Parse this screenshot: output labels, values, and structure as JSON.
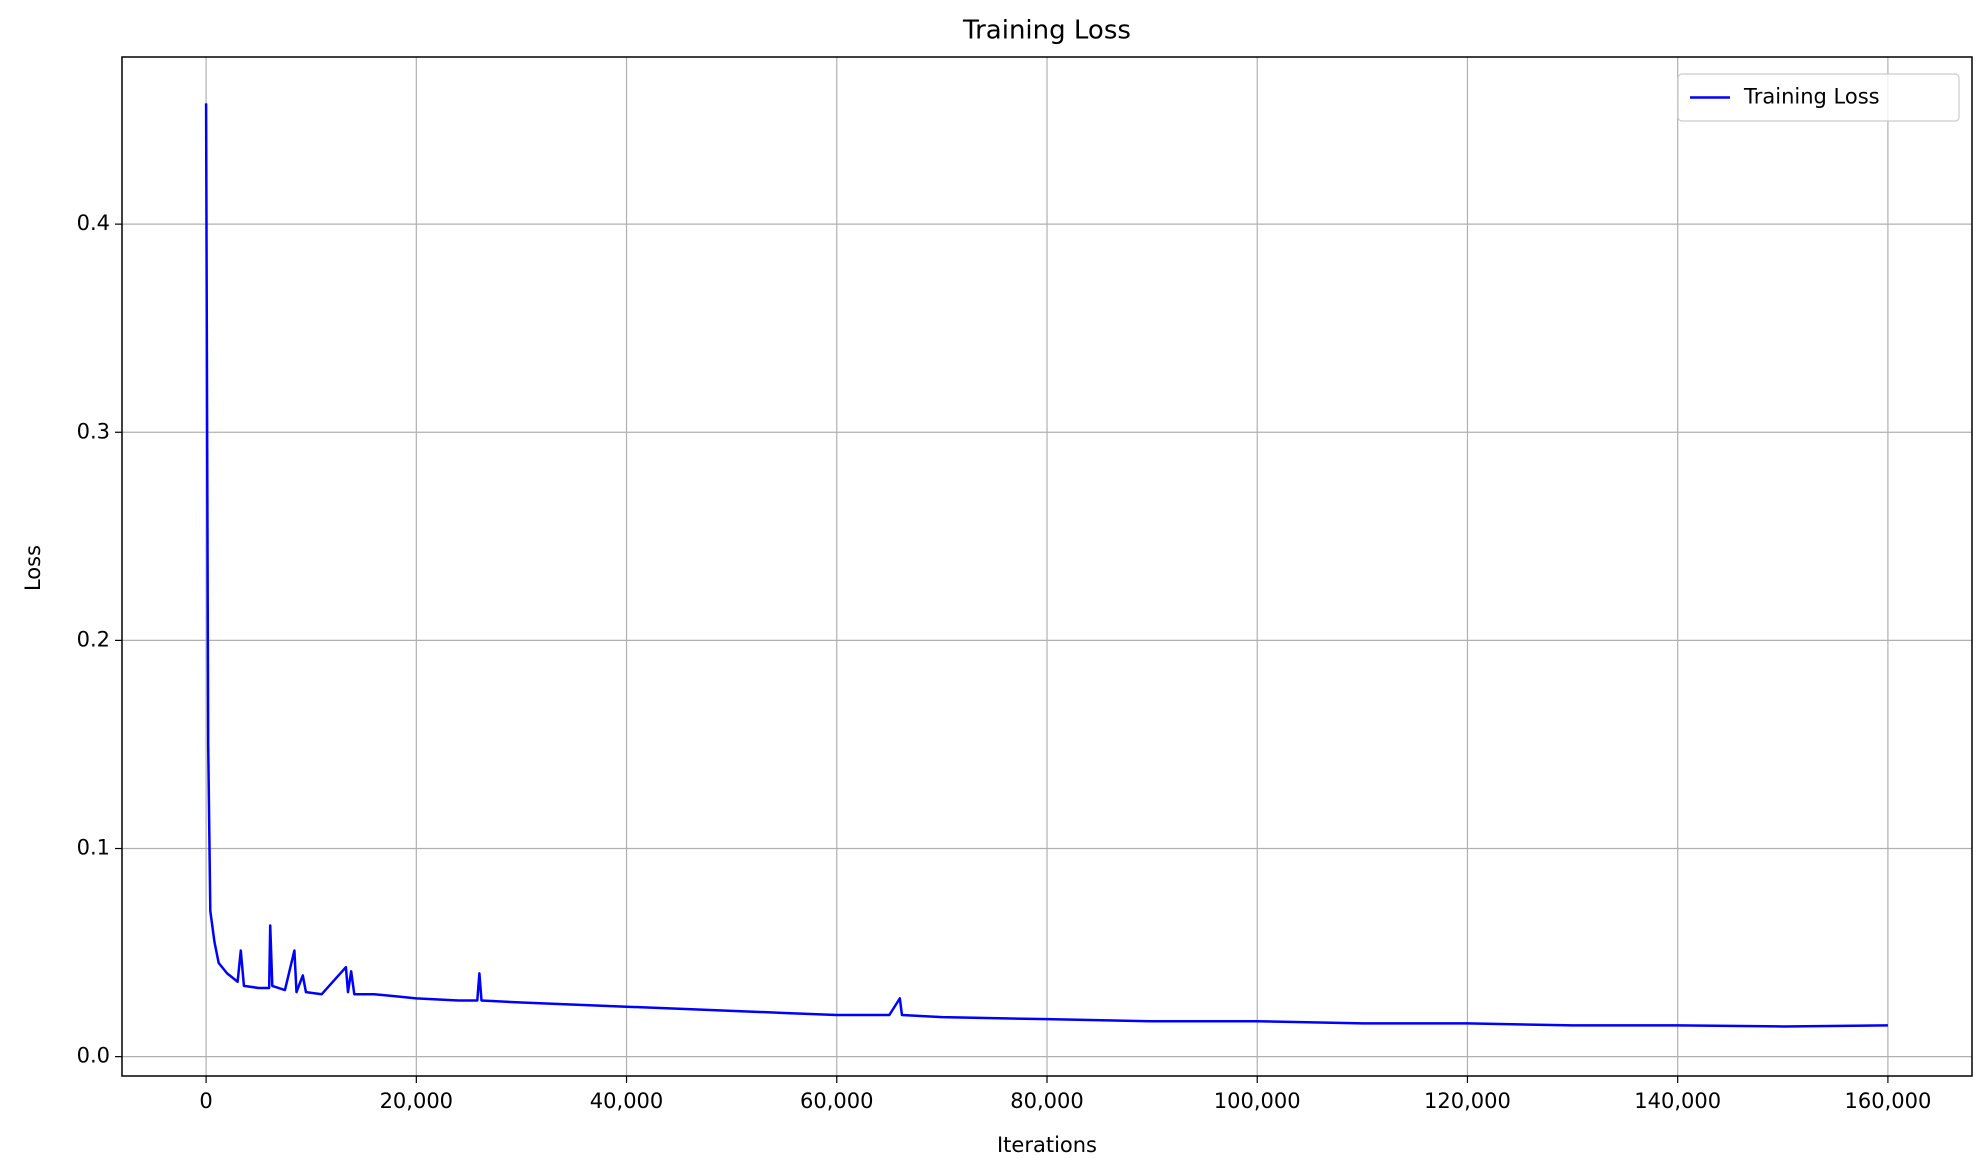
{
  "chart_data": {
    "type": "line",
    "title": "Training Loss",
    "x_label": "Iterations",
    "y_label": "Loss",
    "x": [
      0,
      100,
      200,
      400,
      800,
      1200,
      2000,
      3000,
      3300,
      3600,
      5000,
      6000,
      6100,
      6300,
      7500,
      8400,
      8600,
      9200,
      9500,
      11000,
      13300,
      13500,
      13800,
      14100,
      16000,
      18000,
      20000,
      24000,
      25800,
      26000,
      26200,
      30000,
      35000,
      40000,
      45000,
      50000,
      55000,
      60000,
      65000,
      66000,
      66200,
      70000,
      80000,
      90000,
      100000,
      110000,
      120000,
      130000,
      140000,
      150000,
      160000
    ],
    "series": [
      {
        "name": "Training Loss",
        "color": "#0000ff",
        "values": [
          0.458,
          0.3,
          0.15,
          0.07,
          0.055,
          0.045,
          0.04,
          0.036,
          0.051,
          0.034,
          0.033,
          0.033,
          0.063,
          0.034,
          0.032,
          0.051,
          0.031,
          0.039,
          0.031,
          0.03,
          0.043,
          0.031,
          0.041,
          0.03,
          0.03,
          0.029,
          0.028,
          0.027,
          0.027,
          0.04,
          0.027,
          0.026,
          0.025,
          0.024,
          0.023,
          0.022,
          0.021,
          0.02,
          0.02,
          0.028,
          0.02,
          0.019,
          0.018,
          0.017,
          0.017,
          0.016,
          0.016,
          0.015,
          0.015,
          0.0145,
          0.015
        ]
      }
    ],
    "xlim": [
      -8000,
      168000
    ],
    "xticks": [
      {
        "value": 0,
        "label": "0"
      },
      {
        "value": 20000,
        "label": "20,000"
      },
      {
        "value": 40000,
        "label": "40,000"
      },
      {
        "value": 60000,
        "label": "60,000"
      },
      {
        "value": 80000,
        "label": "80,000"
      },
      {
        "value": 100000,
        "label": "100,000"
      },
      {
        "value": 120000,
        "label": "120,000"
      },
      {
        "value": 140000,
        "label": "140,000"
      },
      {
        "value": 160000,
        "label": "160,000"
      }
    ],
    "ylim": [
      -0.0093,
      0.4803
    ],
    "yticks": [
      {
        "value": 0,
        "label": "0.0"
      },
      0.1,
      0.2,
      0.3,
      0.4
    ],
    "grid": true,
    "legend": "upper right"
  }
}
